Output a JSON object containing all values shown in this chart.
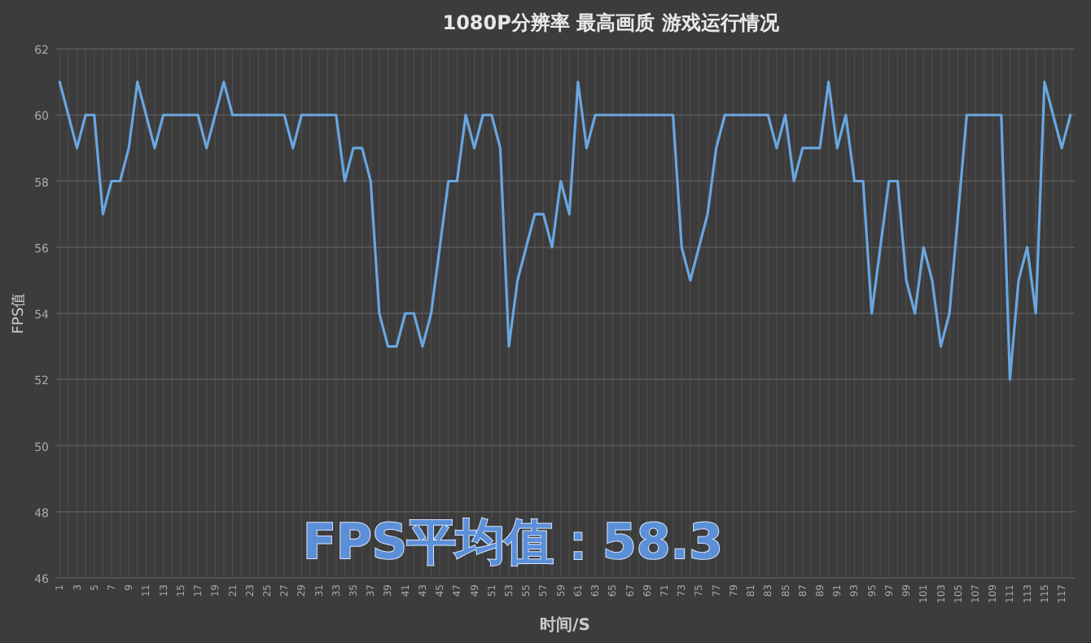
{
  "chart_data": {
    "type": "line",
    "title": "1080P分辨率 最高画质 游戏运行情况",
    "xlabel": "时间/S",
    "ylabel": "FPS值",
    "categories": [
      "1",
      null,
      "3",
      null,
      "5",
      null,
      "7",
      null,
      "9",
      null,
      "11",
      null,
      "13",
      null,
      "15",
      null,
      "17",
      null,
      "19",
      null,
      "21",
      null,
      "23",
      null,
      "25",
      null,
      "27",
      null,
      "29",
      null,
      "31",
      null,
      "33",
      null,
      "35",
      null,
      "37",
      null,
      "39",
      null,
      "41",
      null,
      "43",
      null,
      "45",
      null,
      "47",
      null,
      "49",
      null,
      "51",
      null,
      "53",
      null,
      "55",
      null,
      "57",
      null,
      "59",
      null,
      "61",
      null,
      "63",
      null,
      "65",
      null,
      "67",
      null,
      "69",
      null,
      "71",
      null,
      "73",
      null,
      "75",
      null,
      "77",
      null,
      "79",
      null,
      "81",
      null,
      "83",
      null,
      "85",
      null,
      "87",
      null,
      "89",
      null,
      "91",
      null,
      "93",
      null,
      "95",
      null,
      "97",
      null,
      "99",
      null,
      "101",
      null,
      "103",
      null,
      "105",
      null,
      "107",
      null,
      "109",
      null,
      "111",
      null,
      "113",
      null,
      "115",
      null,
      "117",
      null
    ],
    "series": [
      {
        "color": "#6aa6e0",
        "values": [
          61,
          60,
          59,
          60,
          60,
          57,
          58,
          58,
          59,
          61,
          60,
          59,
          60,
          60,
          60,
          60,
          60,
          59,
          60,
          61,
          60,
          60,
          60,
          60,
          60,
          60,
          60,
          59,
          60,
          60,
          60,
          60,
          60,
          58,
          59,
          59,
          58,
          54,
          53,
          53,
          54,
          54,
          53,
          54,
          56,
          58,
          58,
          60,
          59,
          60,
          60,
          59,
          53,
          55,
          56,
          57,
          57,
          56,
          58,
          57,
          61,
          59,
          60,
          60,
          60,
          60,
          60,
          60,
          60,
          60,
          60,
          60,
          56,
          55,
          56,
          57,
          59,
          60,
          60,
          60,
          60,
          60,
          60,
          59,
          60,
          58,
          59,
          59,
          59,
          61,
          59,
          60,
          58,
          58,
          54,
          56,
          58,
          58,
          55,
          54,
          56,
          55,
          53,
          54,
          57,
          60,
          60,
          60,
          60,
          60,
          52,
          55,
          56,
          54,
          61,
          60,
          59,
          60
        ]
      }
    ],
    "ylim": [
      46,
      62
    ],
    "yticks": [
      46,
      48,
      50,
      52,
      54,
      56,
      58,
      60,
      62
    ],
    "grid": true,
    "annotations": [
      "FPS平均值：58.3"
    ]
  }
}
